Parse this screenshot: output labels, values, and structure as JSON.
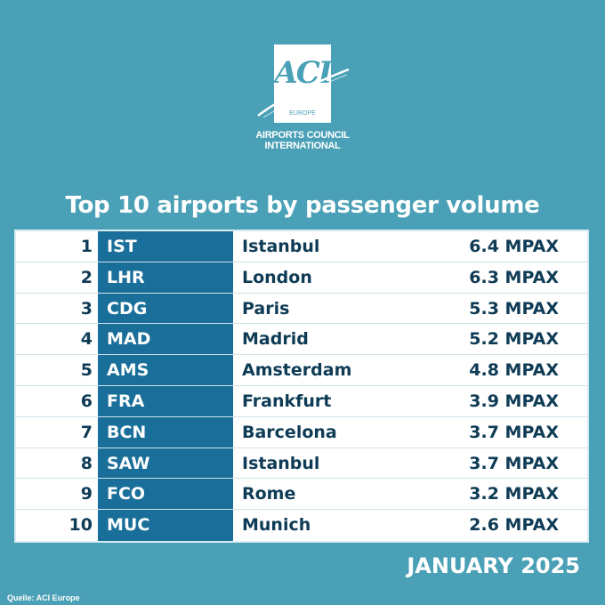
{
  "logo": {
    "mark": "ACI",
    "sub": "EUROPE",
    "line1": "AIRPORTS COUNCIL",
    "line2": "INTERNATIONAL"
  },
  "title": "Top 10 airports by passenger volume",
  "table": {
    "rows": [
      {
        "rank": "1",
        "code": "IST",
        "city": "Istanbul",
        "pax": "6.4 MPAX"
      },
      {
        "rank": "2",
        "code": "LHR",
        "city": "London",
        "pax": "6.3 MPAX"
      },
      {
        "rank": "3",
        "code": "CDG",
        "city": "Paris",
        "pax": "5.3 MPAX"
      },
      {
        "rank": "4",
        "code": "MAD",
        "city": "Madrid",
        "pax": "5.2 MPAX"
      },
      {
        "rank": "5",
        "code": "AMS",
        "city": "Amsterdam",
        "pax": "4.8 MPAX"
      },
      {
        "rank": "6",
        "code": "FRA",
        "city": "Frankfurt",
        "pax": "3.9 MPAX"
      },
      {
        "rank": "7",
        "code": "BCN",
        "city": "Barcelona",
        "pax": "3.7 MPAX"
      },
      {
        "rank": "8",
        "code": "SAW",
        "city": "Istanbul",
        "pax": "3.7 MPAX"
      },
      {
        "rank": "9",
        "code": "FCO",
        "city": "Rome",
        "pax": "3.2 MPAX"
      },
      {
        "rank": "10",
        "code": "MUC",
        "city": "Munich",
        "pax": "2.6 MPAX"
      }
    ]
  },
  "date": "JANUARY 2025",
  "source": "Quelle: ACI Europe",
  "colors": {
    "background": "#4aa0b6",
    "code_column": "#1a6f9a",
    "text_dark": "#0e3b55",
    "white": "#ffffff"
  }
}
